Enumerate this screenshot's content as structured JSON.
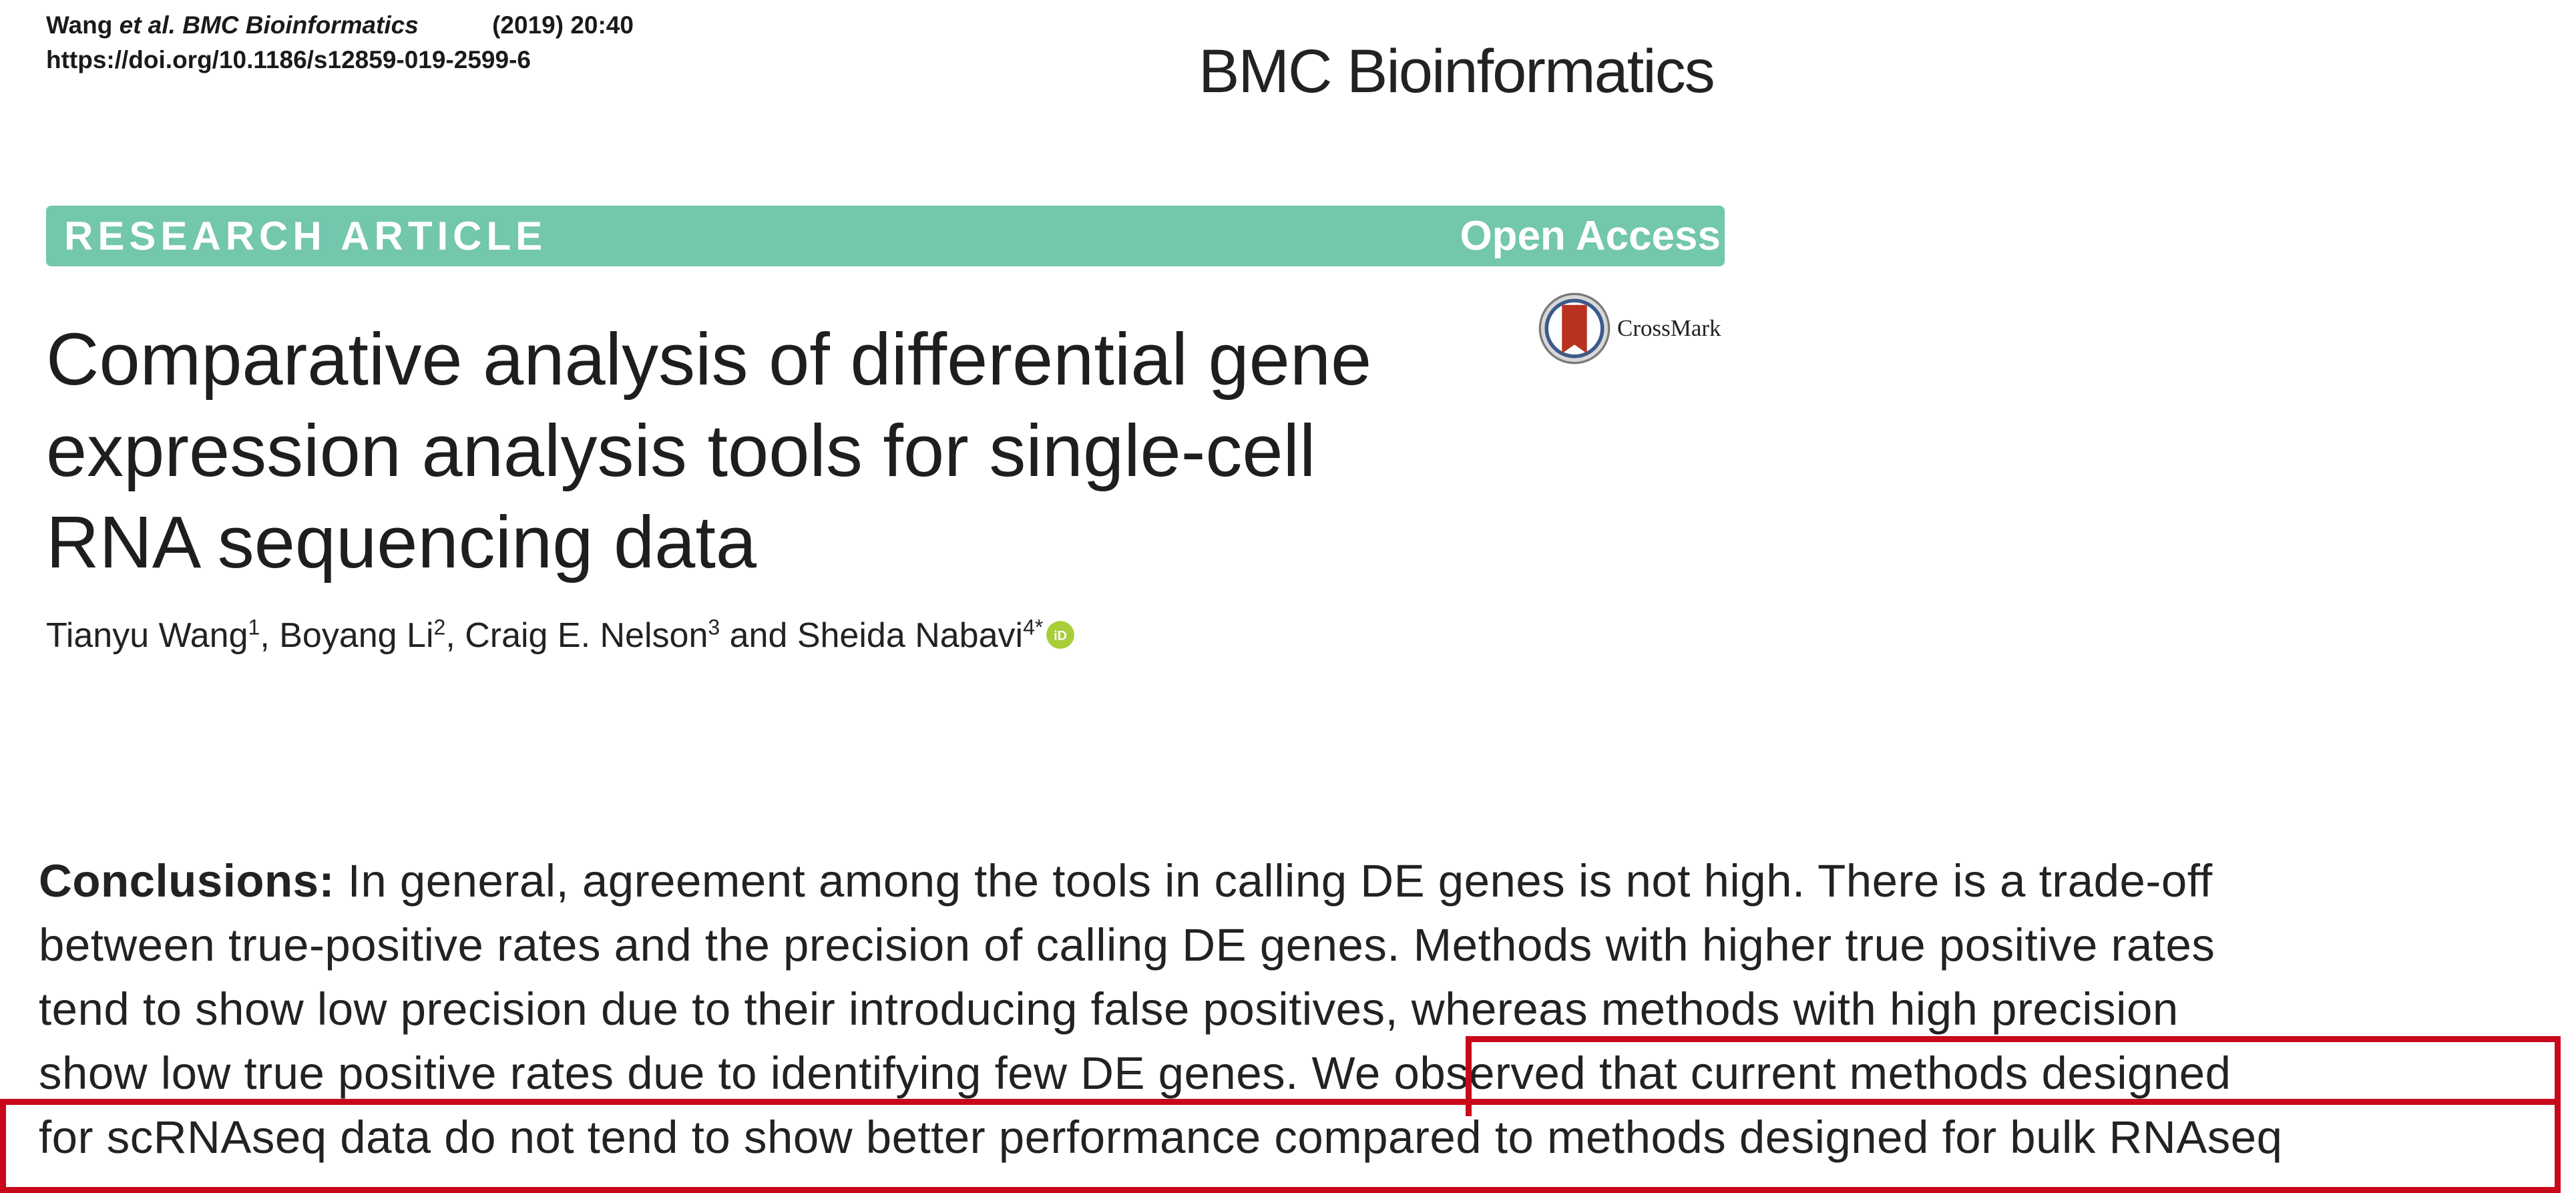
{
  "header": {
    "authors_short": "Wang",
    "et_al_journal": "et al. BMC Bioinformatics",
    "year_volume": "(2019) 20:40",
    "doi": "https://doi.org/10.1186/s12859-019-2599-6",
    "journal_name": "BMC Bioinformatics"
  },
  "banner": {
    "article_type": "RESEARCH ARTICLE",
    "access": "Open Access",
    "color": "#72c7ad"
  },
  "crossmark": {
    "label": "CrossMark",
    "icon": "crossmark-icon"
  },
  "title_lines": [
    "Comparative analysis of differential gene",
    "expression analysis tools for single-cell",
    "RNA sequencing data"
  ],
  "authors": [
    {
      "name": "Tianyu Wang",
      "sup": "1",
      "sep": ", "
    },
    {
      "name": "Boyang Li",
      "sup": "2",
      "sep": ", "
    },
    {
      "name": "Craig E. Nelson",
      "sup": "3",
      "sep": " and "
    },
    {
      "name": "Sheida Nabavi",
      "sup": "4*",
      "sep": ""
    }
  ],
  "orcid_icon": "orcid-icon",
  "abstract": {
    "heading": "Conclusions:",
    "line1": " In general, agreement among the tools in calling DE genes is not high. There is a trade-off",
    "line2": "between true-positive rates and the precision of calling DE genes. Methods with higher true positive rates",
    "line3": "tend to show low precision due to their introducing false positives, whereas methods with high precision",
    "line4_a": "show low true positive rates due to identifying few DE genes.",
    "line4_b": " We observed that current methods designed",
    "line5": "for scRNAseq data do not tend to show better performance compared to methods designed for bulk RNAseq"
  },
  "highlight_color": "#c8071a"
}
